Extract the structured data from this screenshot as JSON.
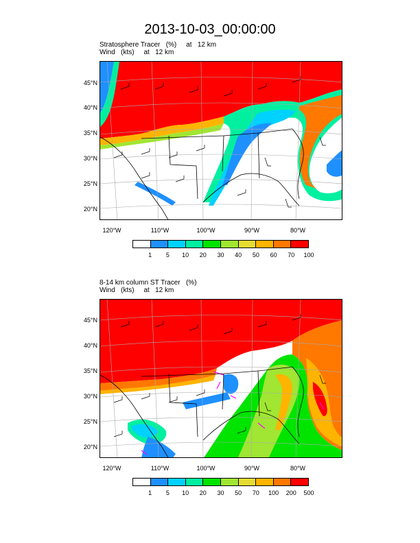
{
  "title": "2013-10-03_00:00:00",
  "panels": [
    {
      "id": "stratosphere-tracer",
      "line1": "Stratosphere Tracer   (%)     at   12 km",
      "line2": "Wind   (kts)     at   12 km",
      "lat_labels": [
        "45°N",
        "40°N",
        "35°N",
        "30°N",
        "25°N",
        "20°N"
      ],
      "lon_labels": [
        "120°W",
        "110°W",
        "100°W",
        "90°W",
        "80°W"
      ],
      "colorbar": {
        "labels": [
          "1",
          "5",
          "10",
          "20",
          "30",
          "40",
          "50",
          "60",
          "70",
          "100"
        ],
        "colors": [
          "#ffffff",
          "#1e90ff",
          "#00d2ff",
          "#00f0a0",
          "#00e400",
          "#a0e632",
          "#e6dc32",
          "#ffb400",
          "#ff7800",
          "#ff0000"
        ]
      }
    },
    {
      "id": "column-st-tracer",
      "line1": "8-14 km column ST Tracer   (%)",
      "line2": "Wind   (kts)     at   12 km",
      "lat_labels": [
        "45°N",
        "40°N",
        "35°N",
        "30°N",
        "25°N",
        "20°N"
      ],
      "lon_labels": [
        "120°W",
        "110°W",
        "100°W",
        "90°W",
        "80°W"
      ],
      "colorbar": {
        "labels": [
          "1",
          "5",
          "10",
          "20",
          "30",
          "50",
          "70",
          "100",
          "200",
          "500"
        ],
        "colors": [
          "#ffffff",
          "#1e90ff",
          "#00d2ff",
          "#00f0a0",
          "#00e400",
          "#a0e632",
          "#e6dc32",
          "#ffb400",
          "#ff7800",
          "#ff0000"
        ]
      }
    }
  ]
}
